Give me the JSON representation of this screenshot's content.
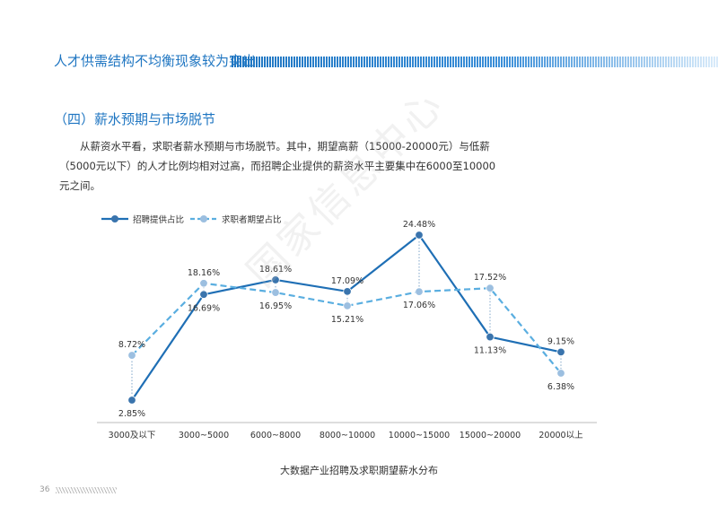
{
  "header": {
    "title": "人才供需结构不均衡现象较为突出"
  },
  "section": {
    "title": "（四）薪水预期与市场脱节",
    "paragraph": "从薪资水平看，求职者薪水预期与市场脱节。其中，期望高薪（15000-20000元）与低薪（5000元以下）的人才比例均相对过高，而招聘企业提供的薪资水平主要集中在6000至10000元之间。"
  },
  "watermark": "国家信息中心",
  "chart_data": {
    "type": "line",
    "categories": [
      "3000及以下",
      "3000~5000",
      "6000~8000",
      "8000~10000",
      "10000~15000",
      "15000~20000",
      "20000以上"
    ],
    "series": [
      {
        "name": "招聘提供占比",
        "values": [
          2.85,
          16.69,
          18.61,
          17.09,
          24.48,
          11.13,
          9.15
        ],
        "labels": [
          "2.85%",
          "16.69%",
          "18.61%",
          "17.09%",
          "24.48%",
          "11.13%",
          "9.15%"
        ],
        "color": "#1f6fb5",
        "style": "solid"
      },
      {
        "name": "求职者期望占比",
        "values": [
          8.72,
          18.16,
          16.95,
          15.21,
          17.06,
          17.52,
          6.38
        ],
        "labels": [
          "8.72%",
          "18.16%",
          "16.95%",
          "15.21%",
          "17.06%",
          "17.52%",
          "6.38%"
        ],
        "color": "#5aaee0",
        "style": "dashed"
      }
    ],
    "ylim": [
      0,
      27
    ],
    "legend_placement": "top-left",
    "grid": false,
    "caption": "大数据产业招聘及求职期望薪水分布"
  },
  "footer": {
    "page_number": "36"
  }
}
